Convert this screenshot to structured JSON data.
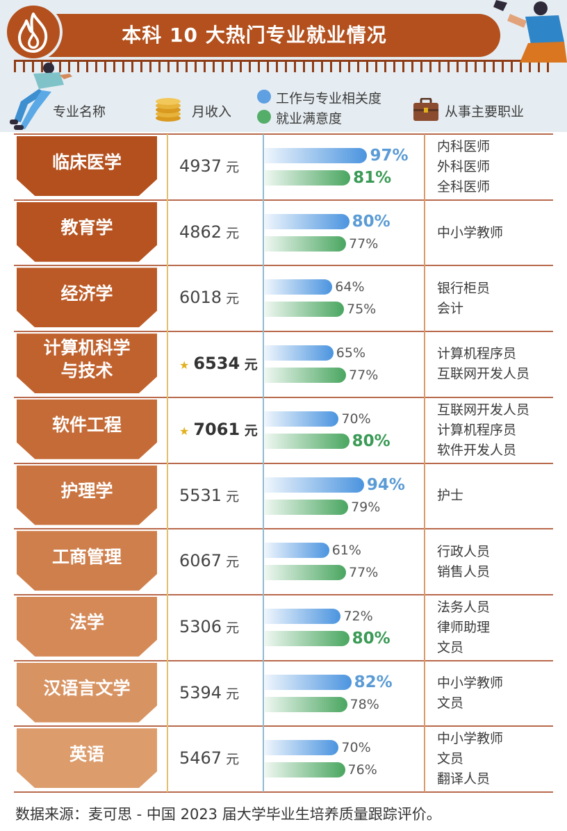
{
  "title": "本科 10 大热门专业就业情况",
  "header": {
    "major_label": "专业名称",
    "income_label": "月收入",
    "relevance_label": "工作与专业相关度",
    "satisfaction_label": "就业满意度",
    "jobs_label": "从事主要职业"
  },
  "colors": {
    "brand": "#b3501d",
    "relevance": "#4b94df",
    "satisfaction": "#4aa660",
    "highlight_star": "#e2b01c"
  },
  "rows": [
    {
      "major": "临床医学",
      "income": "4937",
      "unit": "元",
      "relevance": "97%",
      "satisfaction": "81%",
      "jobs": [
        "内科医师",
        "外科医师",
        "全科医师"
      ]
    },
    {
      "major": "教育学",
      "income": "4862",
      "unit": "元",
      "relevance": "80%",
      "satisfaction": "77%",
      "jobs": [
        "中小学教师"
      ]
    },
    {
      "major": "经济学",
      "income": "6018",
      "unit": "元",
      "relevance": "64%",
      "satisfaction": "75%",
      "jobs": [
        "银行柜员",
        "会计"
      ]
    },
    {
      "major": "计算机科学\n与技术",
      "income": "6534",
      "unit": "元",
      "relevance": "65%",
      "satisfaction": "77%",
      "jobs": [
        "计算机程序员",
        "互联网开发人员"
      ]
    },
    {
      "major": "软件工程",
      "income": "7061",
      "unit": "元",
      "relevance": "70%",
      "satisfaction": "80%",
      "jobs": [
        "互联网开发人员",
        "计算机程序员",
        "软件开发人员"
      ]
    },
    {
      "major": "护理学",
      "income": "5531",
      "unit": "元",
      "relevance": "94%",
      "satisfaction": "79%",
      "jobs": [
        "护士"
      ]
    },
    {
      "major": "工商管理",
      "income": "6067",
      "unit": "元",
      "relevance": "61%",
      "satisfaction": "77%",
      "jobs": [
        "行政人员",
        "销售人员"
      ]
    },
    {
      "major": "法学",
      "income": "5306",
      "unit": "元",
      "relevance": "72%",
      "satisfaction": "80%",
      "jobs": [
        "法务人员",
        "律师助理",
        "文员"
      ]
    },
    {
      "major": "汉语言文学",
      "income": "5394",
      "unit": "元",
      "relevance": "82%",
      "satisfaction": "78%",
      "jobs": [
        "中小学教师",
        "文员"
      ]
    },
    {
      "major": "英语",
      "income": "5467",
      "unit": "元",
      "relevance": "70%",
      "satisfaction": "76%",
      "jobs": [
        "中小学教师",
        "文员",
        "翻译人员"
      ]
    }
  ],
  "footer": "数据来源：麦可思 - 中国 2023 届大学毕业生培养质量跟踪评价。",
  "chart_data": {
    "type": "table",
    "title": "本科 10 大热门专业就业情况",
    "columns": [
      "专业名称",
      "月收入",
      "工作与专业相关度",
      "就业满意度",
      "从事主要职业"
    ],
    "categories": [
      "临床医学",
      "教育学",
      "经济学",
      "计算机科学与技术",
      "软件工程",
      "护理学",
      "工商管理",
      "法学",
      "汉语言文学",
      "英语"
    ],
    "series": [
      {
        "name": "月收入",
        "values": [
          4937,
          4862,
          6018,
          6534,
          7061,
          5531,
          6067,
          5306,
          5394,
          5467
        ]
      },
      {
        "name": "工作与专业相关度",
        "values": [
          97,
          80,
          64,
          65,
          70,
          94,
          61,
          72,
          82,
          70
        ]
      },
      {
        "name": "就业满意度",
        "values": [
          81,
          77,
          75,
          77,
          80,
          79,
          77,
          80,
          78,
          76
        ]
      }
    ],
    "highlighted_income": [
      "计算机科学与技术",
      "软件工程"
    ],
    "highlighted_relevance": [
      "临床医学",
      "教育学",
      "护理学",
      "汉语言文学"
    ],
    "highlighted_satisfaction": [
      "临床医学",
      "软件工程",
      "法学"
    ]
  }
}
